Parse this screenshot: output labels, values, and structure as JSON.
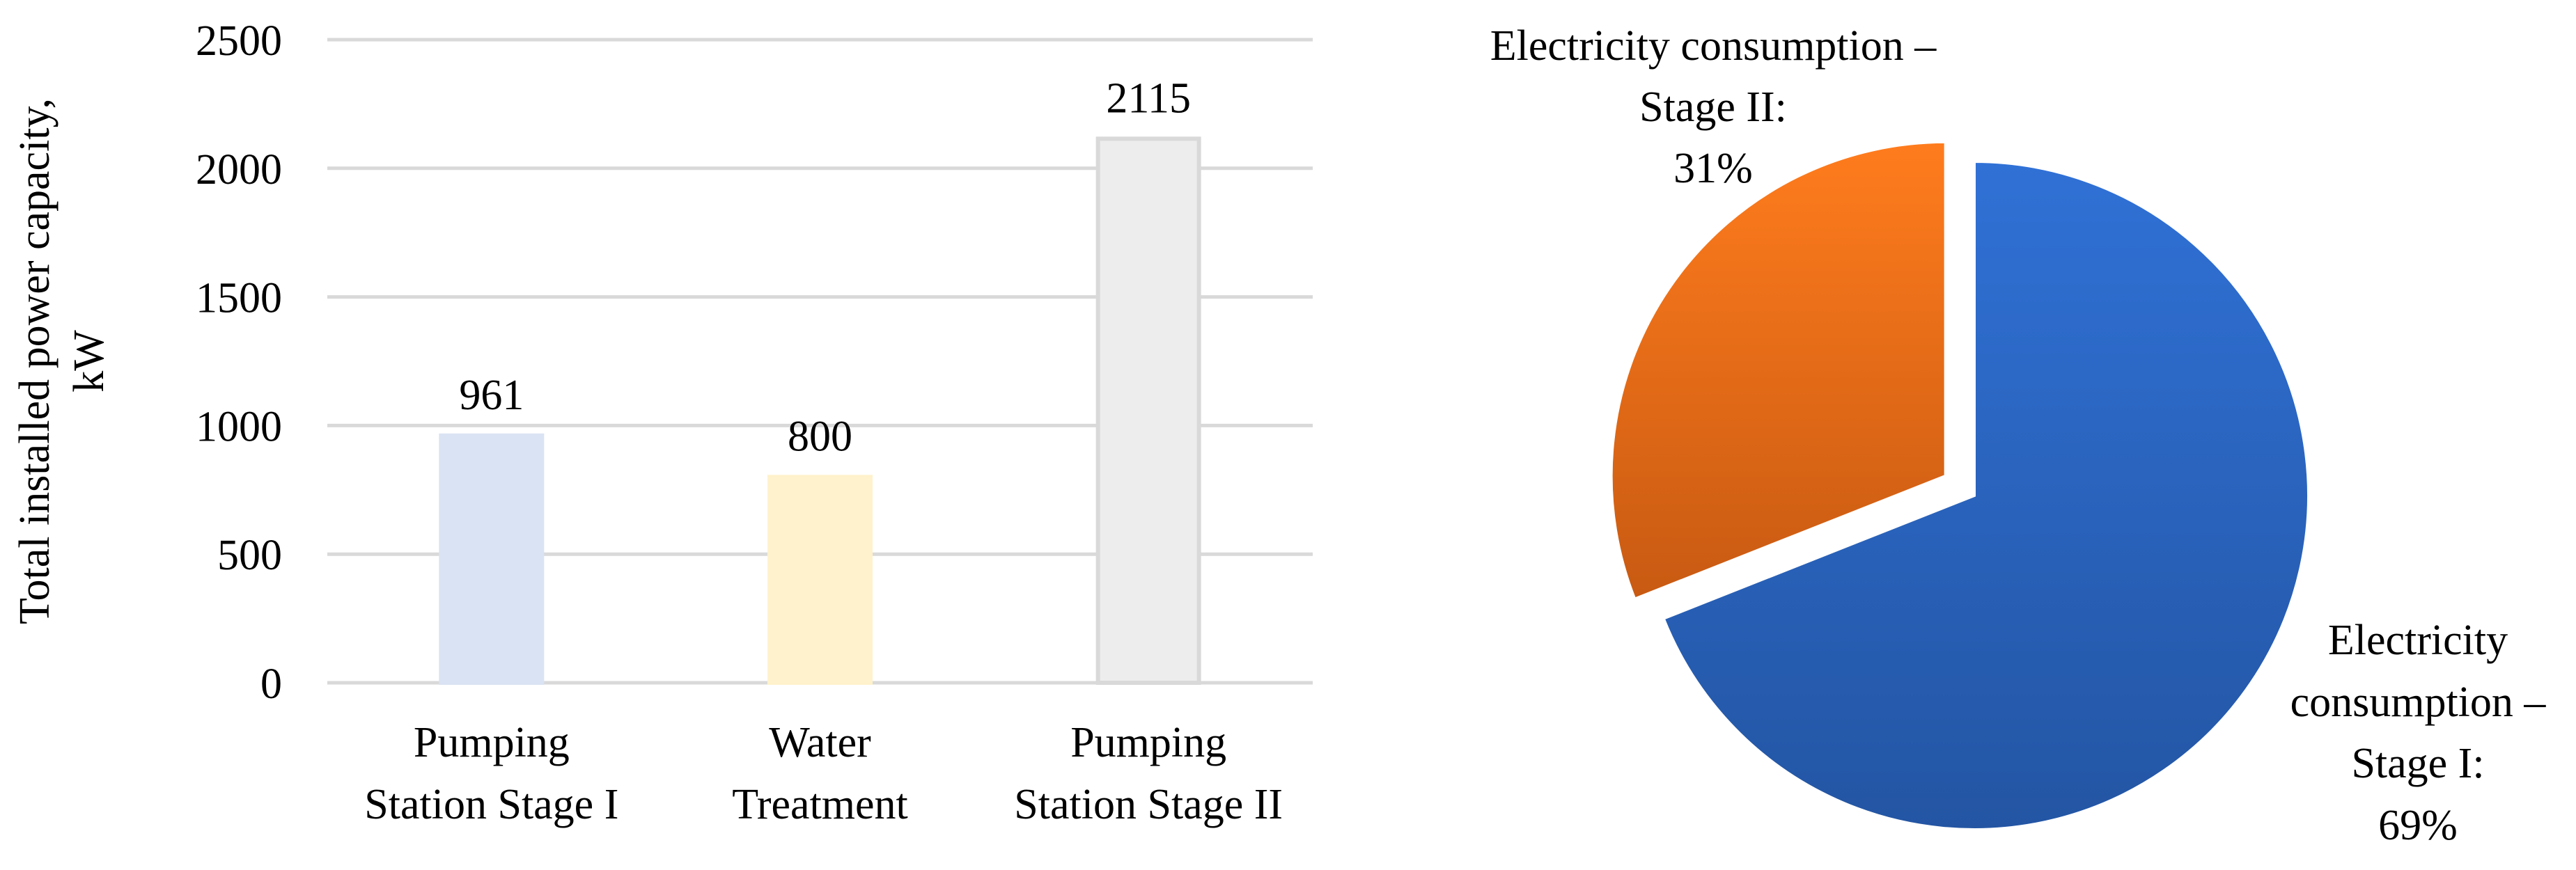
{
  "chart_data": [
    {
      "type": "bar",
      "title": "",
      "xlabel": "",
      "ylabel": "Total installed power capacity, kW",
      "ylabel_lines": [
        "Total installed power capacity,",
        "kW"
      ],
      "ylim": [
        0,
        2500
      ],
      "yticks": [
        0,
        500,
        1000,
        1500,
        2000,
        2500
      ],
      "grid": true,
      "legend": "none",
      "categories": [
        "Pumping Station Stage I",
        "Water Treatment",
        "Pumping Station Stage II"
      ],
      "category_lines": [
        [
          "Pumping",
          "Station Stage I"
        ],
        [
          "Water",
          "Treatment"
        ],
        [
          "Pumping",
          "Station Stage II"
        ]
      ],
      "values": [
        961,
        800,
        2115
      ],
      "data_labels": [
        "961",
        "800",
        "2115"
      ],
      "colors": [
        "#dae3f3",
        "#fff2cc",
        "#ededed"
      ],
      "bar_outline_colors": [
        "#dae3f3",
        "#fff2cc",
        "#d9d9d9"
      ],
      "grid_color": "#d9d9d9"
    },
    {
      "type": "pie",
      "title": "",
      "legend": "none",
      "slices": [
        {
          "name": "Electricity consumption – Stage I",
          "value": 69,
          "label": "69%",
          "label_lines": [
            "Electricity",
            "consumption –",
            "Stage I:",
            "69%"
          ],
          "color_top": "#3071d6",
          "color_bottom": "#2355a3",
          "exploded": false
        },
        {
          "name": "Electricity consumption – Stage II",
          "value": 31,
          "label": "31%",
          "label_lines": [
            "Electricity consumption –",
            "Stage II:",
            "31%"
          ],
          "color_top": "#ff7c1d",
          "color_bottom": "#c85a12",
          "exploded": true
        }
      ]
    }
  ]
}
